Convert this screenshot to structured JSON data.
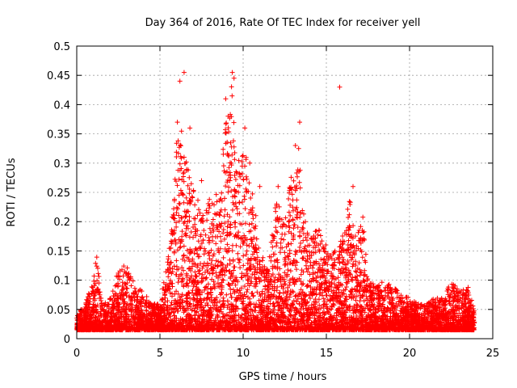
{
  "chart_data": {
    "type": "scatter",
    "title": "Day 364 of 2016, Rate Of TEC Index for receiver yell",
    "xlabel": "GPS time / hours",
    "ylabel": "ROTI / TECUs",
    "xlim": [
      0,
      25
    ],
    "ylim": [
      0,
      0.5
    ],
    "x_ticks": [
      0,
      5,
      10,
      15,
      20,
      25
    ],
    "y_ticks": [
      0,
      0.05,
      0.1,
      0.15,
      0.2,
      0.25,
      0.3,
      0.35,
      0.4,
      0.45,
      0.5
    ],
    "x_tick_labels": [
      "0",
      "5",
      "10",
      "15",
      "20",
      "25"
    ],
    "y_tick_labels": [
      "0",
      "0.05",
      "0.1",
      "0.15",
      "0.2",
      "0.25",
      "0.3",
      "0.35",
      "0.4",
      "0.45",
      "0.5"
    ],
    "grid": true,
    "marker": "+",
    "color": "#ff0000",
    "envelope": [
      [
        0.0,
        0.04
      ],
      [
        0.5,
        0.06
      ],
      [
        1.0,
        0.1
      ],
      [
        1.2,
        0.15
      ],
      [
        1.5,
        0.06
      ],
      [
        2.0,
        0.07
      ],
      [
        2.5,
        0.12
      ],
      [
        3.0,
        0.13
      ],
      [
        3.5,
        0.09
      ],
      [
        4.0,
        0.08
      ],
      [
        4.5,
        0.06
      ],
      [
        5.0,
        0.06
      ],
      [
        5.5,
        0.14
      ],
      [
        5.8,
        0.25
      ],
      [
        6.0,
        0.34
      ],
      [
        6.3,
        0.37
      ],
      [
        6.6,
        0.3
      ],
      [
        7.0,
        0.26
      ],
      [
        7.5,
        0.22
      ],
      [
        8.0,
        0.25
      ],
      [
        8.5,
        0.25
      ],
      [
        9.0,
        0.38
      ],
      [
        9.3,
        0.44
      ],
      [
        9.6,
        0.3
      ],
      [
        10.0,
        0.33
      ],
      [
        10.5,
        0.28
      ],
      [
        11.0,
        0.15
      ],
      [
        11.5,
        0.12
      ],
      [
        12.0,
        0.24
      ],
      [
        12.5,
        0.2
      ],
      [
        13.0,
        0.33
      ],
      [
        13.3,
        0.36
      ],
      [
        13.6,
        0.22
      ],
      [
        14.0,
        0.17
      ],
      [
        14.5,
        0.19
      ],
      [
        15.0,
        0.16
      ],
      [
        15.5,
        0.15
      ],
      [
        16.0,
        0.18
      ],
      [
        16.4,
        0.25
      ],
      [
        16.8,
        0.17
      ],
      [
        17.2,
        0.22
      ],
      [
        17.5,
        0.1
      ],
      [
        18.0,
        0.09
      ],
      [
        18.5,
        0.1
      ],
      [
        19.0,
        0.09
      ],
      [
        19.5,
        0.08
      ],
      [
        20.0,
        0.07
      ],
      [
        20.5,
        0.06
      ],
      [
        21.0,
        0.06
      ],
      [
        21.5,
        0.07
      ],
      [
        22.0,
        0.07
      ],
      [
        22.5,
        0.1
      ],
      [
        23.0,
        0.08
      ],
      [
        23.5,
        0.09
      ],
      [
        23.9,
        0.05
      ]
    ],
    "outliers": [
      [
        6.2,
        0.44
      ],
      [
        6.45,
        0.455
      ],
      [
        9.35,
        0.455
      ],
      [
        9.45,
        0.445
      ],
      [
        8.95,
        0.41
      ],
      [
        15.8,
        0.43
      ],
      [
        13.4,
        0.37
      ],
      [
        10.1,
        0.36
      ],
      [
        6.8,
        0.36
      ],
      [
        6.05,
        0.37
      ],
      [
        12.1,
        0.26
      ],
      [
        16.6,
        0.26
      ],
      [
        10.4,
        0.3
      ],
      [
        7.5,
        0.27
      ],
      [
        11.0,
        0.26
      ]
    ],
    "density_floor": 0.015,
    "point_count": 7000
  }
}
